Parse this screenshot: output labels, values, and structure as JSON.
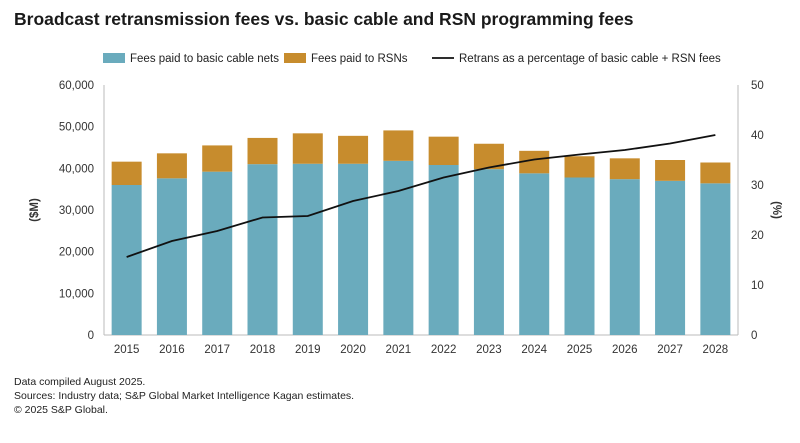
{
  "chart_data": {
    "type": "bar",
    "title": "Broadcast retransmission fees vs. basic cable and RSN programming fees",
    "categories": [
      "2015",
      "2016",
      "2017",
      "2018",
      "2019",
      "2020",
      "2021",
      "2022",
      "2023",
      "2024",
      "2025",
      "2026",
      "2027",
      "2028"
    ],
    "series": [
      {
        "name": "Fees paid to basic cable nets",
        "type": "bar",
        "axis": "left",
        "color": "#6aabbd",
        "values": [
          36000,
          37600,
          39200,
          41000,
          41100,
          41100,
          41800,
          40800,
          39800,
          38800,
          37800,
          37400,
          37000,
          36400
        ]
      },
      {
        "name": "Fees paid to RSNs",
        "type": "bar",
        "axis": "left",
        "color": "#c78c2d",
        "values": [
          5600,
          6000,
          6300,
          6300,
          7300,
          6700,
          7300,
          6800,
          6100,
          5400,
          5100,
          5000,
          5000,
          5000
        ]
      },
      {
        "name": "Retrans as a percentage of basic cable + RSN fees",
        "type": "line",
        "axis": "right",
        "color": "#111111",
        "values": [
          15.6,
          18.8,
          20.8,
          23.5,
          23.8,
          26.8,
          28.8,
          31.5,
          33.5,
          35.1,
          36.1,
          37.0,
          38.3,
          40.0
        ]
      }
    ],
    "stacked": true,
    "ylabel": "($M)",
    "y2label": "(%)",
    "ylim": [
      0,
      60000
    ],
    "y2lim": [
      0,
      50
    ],
    "yticks": [
      "0",
      "10,000",
      "20,000",
      "30,000",
      "40,000",
      "50,000",
      "60,000"
    ],
    "y2ticks": [
      "0",
      "10",
      "20",
      "30",
      "40",
      "50"
    ],
    "grid": false,
    "legend": "top"
  },
  "notes": [
    "Data compiled August 2025.",
    "Sources: Industry data; S&P Global Market Intelligence Kagan estimates.",
    "© 2025 S&P Global."
  ]
}
